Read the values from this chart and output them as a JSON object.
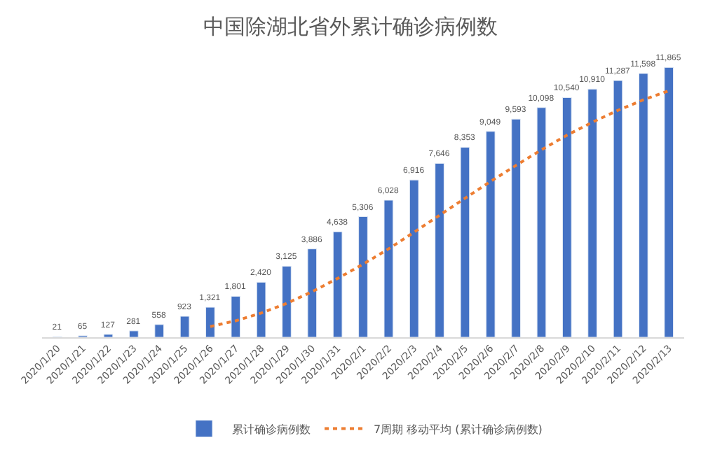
{
  "chart_data": {
    "type": "bar",
    "title": "中国除湖北省外累计确诊病例数",
    "categories": [
      "2020/1/20",
      "2020/1/21",
      "2020/1/22",
      "2020/1/23",
      "2020/1/24",
      "2020/1/25",
      "2020/1/26",
      "2020/1/27",
      "2020/1/28",
      "2020/1/29",
      "2020/1/30",
      "2020/1/31",
      "2020/2/1",
      "2020/2/2",
      "2020/2/3",
      "2020/2/4",
      "2020/2/5",
      "2020/2/6",
      "2020/2/7",
      "2020/2/8",
      "2020/2/9",
      "2020/2/10",
      "2020/2/11",
      "2020/2/12",
      "2020/2/13"
    ],
    "series": [
      {
        "name": "累计确诊病例数",
        "color": "#4472c4",
        "values": [
          21,
          65,
          127,
          281,
          558,
          923,
          1321,
          1801,
          2420,
          3125,
          3886,
          4638,
          5306,
          6028,
          6916,
          7646,
          8353,
          9049,
          9593,
          10098,
          10540,
          10910,
          11287,
          11598,
          11865
        ],
        "value_labels": [
          "21",
          "65",
          "127",
          "281",
          "558",
          "923",
          "1,321",
          "1,801",
          "2,420",
          "3,125",
          "3,886",
          "4,638",
          "5,306",
          "6,028",
          "6,916",
          "7,646",
          "8,353",
          "9,049",
          "9,593",
          "10,098",
          "10,540",
          "10,910",
          "11,287",
          "11,598",
          "11,865"
        ]
      },
      {
        "name": "7周期 移动平均 (累计确诊病例数)",
        "type": "line",
        "color": "#ed7d31",
        "line_style": "dotted",
        "marker": "none",
        "values": [
          null,
          null,
          null,
          null,
          null,
          null,
          471,
          725,
          1062,
          1490,
          2005,
          2588,
          3214,
          3886,
          4617,
          5364,
          6110,
          6848,
          7556,
          8240,
          8885,
          9456,
          9976,
          10439,
          10841
        ]
      }
    ],
    "legend": "bottom",
    "tick_labels": "x"
  }
}
